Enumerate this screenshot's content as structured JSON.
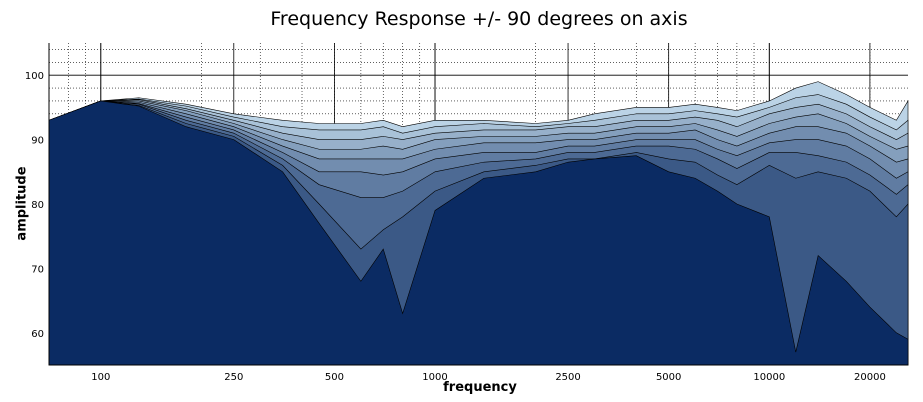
{
  "chart_data": {
    "type": "area",
    "title": "Frequency Response +/- 90 degrees on axis",
    "xlabel": "frequency",
    "ylabel": "amplitude",
    "xscale": "log",
    "xlim": [
      70,
      26000
    ],
    "ylim": [
      55,
      105
    ],
    "x_ticks": [
      100,
      250,
      500,
      1000,
      2500,
      5000,
      10000,
      20000
    ],
    "x_tick_labels": [
      "100",
      "250",
      "500",
      "1000",
      "2500",
      "5000",
      "10000",
      "20000"
    ],
    "y_ticks": [
      60,
      70,
      80,
      90,
      100
    ],
    "y_tick_labels": [
      "60",
      "70",
      "80",
      "90",
      "100"
    ],
    "grid": true,
    "colors": {
      "dark": "#0b2b63",
      "light": "#cfe6f4",
      "edge": "#000000"
    },
    "x": [
      70,
      100,
      130,
      180,
      250,
      350,
      450,
      600,
      700,
      800,
      1000,
      1400,
      2000,
      2500,
      3000,
      4000,
      5000,
      6000,
      7000,
      8000,
      10000,
      12000,
      14000,
      17000,
      20000,
      24000,
      26000
    ],
    "series": [
      {
        "values": [
          93,
          96,
          96.5,
          95.5,
          94,
          93,
          92.5,
          92.5,
          93,
          92,
          93,
          93,
          92.5,
          93,
          94,
          95,
          95,
          95.5,
          95,
          94.5,
          96,
          98,
          99,
          97,
          95,
          93,
          96
        ]
      },
      {
        "values": [
          93,
          96,
          96.3,
          95.2,
          93.5,
          92,
          91.5,
          91.5,
          92,
          91,
          92,
          92.5,
          92,
          92.5,
          93,
          94,
          94,
          94.5,
          94,
          93.5,
          95,
          96.5,
          97,
          95.5,
          93.5,
          91.5,
          93
        ]
      },
      {
        "values": [
          93,
          96,
          96.2,
          94.8,
          93,
          91,
          90,
          90,
          90.5,
          90,
          91,
          91.5,
          91.5,
          92,
          92,
          93,
          93,
          93.5,
          93,
          92,
          94,
          95,
          95.5,
          94,
          92,
          90,
          91
        ]
      },
      {
        "values": [
          93,
          96,
          96,
          94.5,
          92.5,
          90,
          88.5,
          88.5,
          89,
          88.5,
          90,
          90.5,
          90.5,
          91,
          91,
          92,
          92,
          92.5,
          91.5,
          90.5,
          92.5,
          93.5,
          94,
          92.5,
          90.5,
          88.5,
          89
        ]
      },
      {
        "values": [
          93,
          96,
          95.8,
          94,
          92,
          89,
          87,
          87,
          87,
          87,
          88.5,
          89.5,
          89.5,
          90,
          90,
          91,
          91,
          91.5,
          90,
          89,
          91,
          92,
          92,
          91,
          89,
          86.5,
          87
        ]
      },
      {
        "values": [
          93,
          96,
          95.6,
          93.5,
          91.5,
          88,
          85,
          85,
          84.5,
          85,
          87,
          88,
          88,
          89,
          89,
          90,
          90,
          90,
          88.5,
          87.5,
          89.5,
          90,
          90,
          89,
          87,
          84,
          85
        ]
      },
      {
        "values": [
          93,
          96,
          95.5,
          93,
          91,
          87,
          83,
          81,
          81,
          82,
          85,
          86.5,
          87,
          88,
          88,
          89,
          89,
          88.5,
          87,
          85.5,
          88,
          88,
          87.5,
          86.5,
          84.5,
          81.5,
          83
        ]
      },
      {
        "values": [
          93,
          96,
          95.3,
          92.5,
          90.5,
          86,
          80,
          73,
          76,
          78,
          82,
          85,
          86,
          87,
          87,
          88,
          87,
          86.5,
          84.5,
          83,
          86,
          84,
          85,
          84,
          82,
          78,
          80
        ]
      },
      {
        "values": [
          93,
          96,
          95.2,
          92,
          90,
          85,
          77,
          68,
          73,
          63,
          79,
          84,
          85,
          86.5,
          87,
          87.5,
          85,
          84,
          82,
          80,
          78,
          57,
          72,
          68,
          64,
          60,
          59
        ]
      }
    ]
  }
}
